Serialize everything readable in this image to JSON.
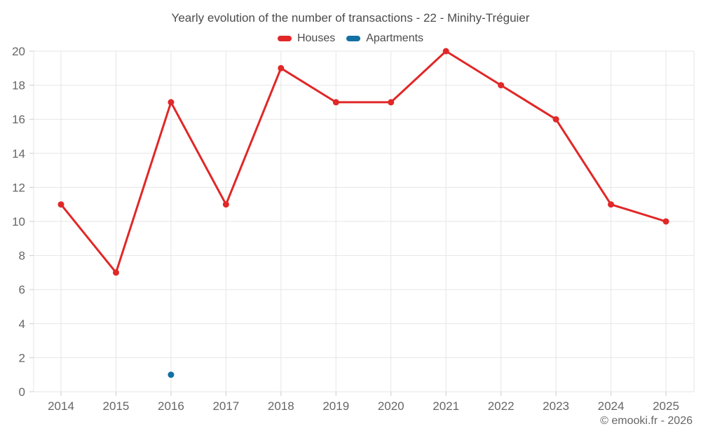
{
  "chart_data": {
    "type": "line",
    "title": "Yearly evolution of the number of transactions - 22 - Minihy-Tréguier",
    "x": [
      "2014",
      "2015",
      "2016",
      "2017",
      "2018",
      "2019",
      "2020",
      "2021",
      "2022",
      "2023",
      "2024",
      "2025"
    ],
    "series": [
      {
        "name": "Houses",
        "color": "#e12727",
        "values": [
          11,
          7,
          17,
          11,
          19,
          17,
          17,
          20,
          18,
          16,
          11,
          10
        ]
      },
      {
        "name": "Apartments",
        "color": "#1371a3",
        "values": [
          null,
          null,
          1,
          null,
          null,
          null,
          null,
          null,
          null,
          null,
          null,
          null
        ]
      }
    ],
    "ylim": [
      0,
      20
    ],
    "ytick_step": 2,
    "grid": true,
    "legend_position": "top",
    "text_color": "#666666",
    "grid_color": "#e6e6e6",
    "tick_color": "#cccccc"
  },
  "footer": {
    "copyright": "© emooki.fr - 2026"
  }
}
